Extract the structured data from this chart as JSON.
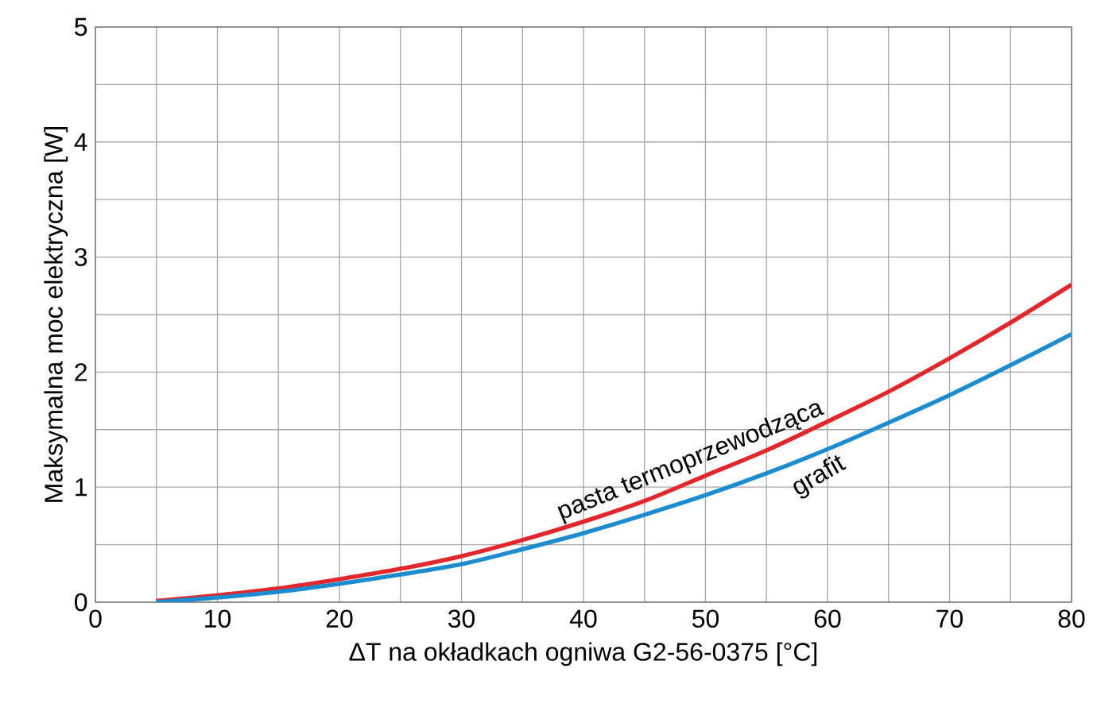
{
  "chart_data": {
    "type": "line",
    "xlabel": "ΔT na okładkach ogniwa G2-56-0375 [°C]",
    "ylabel": "Maksymalna moc elektryczna [W]",
    "x": [
      5,
      10,
      15,
      20,
      25,
      30,
      35,
      40,
      45,
      50,
      55,
      60,
      65,
      70,
      75,
      80
    ],
    "series": [
      {
        "name": "pasta termoprzewodząca",
        "color": "#e3262b",
        "values": [
          0.01,
          0.06,
          0.12,
          0.2,
          0.29,
          0.4,
          0.54,
          0.7,
          0.88,
          1.1,
          1.32,
          1.57,
          1.83,
          2.12,
          2.43,
          2.76
        ]
      },
      {
        "name": "grafit",
        "color": "#1a8ccf",
        "values": [
          0,
          0.04,
          0.09,
          0.16,
          0.24,
          0.33,
          0.46,
          0.6,
          0.76,
          0.93,
          1.12,
          1.33,
          1.56,
          1.8,
          2.06,
          2.33
        ]
      }
    ],
    "xlim": [
      0,
      80
    ],
    "ylim": [
      0,
      5
    ],
    "xticks": [
      0,
      {
        "value": 5,
        "label": null
      },
      10,
      {
        "value": 15,
        "label": null
      },
      20,
      {
        "value": 25,
        "label": null
      },
      30,
      {
        "value": 35,
        "label": null
      },
      40,
      {
        "value": 45,
        "label": null
      },
      50,
      {
        "value": 55,
        "label": null
      },
      60,
      {
        "value": 65,
        "label": null
      },
      70,
      {
        "value": 75,
        "label": null
      },
      80
    ],
    "yticks": [
      0,
      {
        "value": 0.5,
        "label": null
      },
      1,
      {
        "value": 1.5,
        "label": null
      },
      2,
      {
        "value": 2.5,
        "label": null
      },
      3,
      {
        "value": 3.5,
        "label": null
      },
      4,
      {
        "value": 4.5,
        "label": null
      },
      5
    ],
    "grid": true,
    "marker": "none",
    "line_style": "solid"
  }
}
